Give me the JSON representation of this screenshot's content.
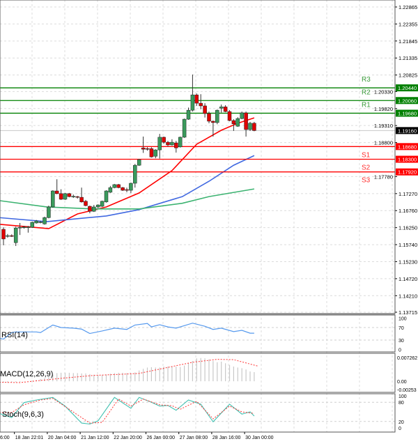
{
  "chart_data": {
    "type": "candlestick",
    "price_axis": {
      "range": [
        1.13715,
        1.22865
      ],
      "ticks": [
        "1.22865",
        "1.22355",
        "1.21845",
        "1.21335",
        "1.20825",
        "1.20330",
        "1.19820",
        "1.19310",
        "1.18800",
        "1.17780",
        "1.17270",
        "1.16760",
        "1.16250",
        "1.15740",
        "1.15230",
        "1.14720",
        "1.14210",
        "1.13715"
      ]
    },
    "time_axis": {
      "labels": [
        "6:00",
        "18 Jan 22:01",
        "20 Jan 04:00",
        "21 Jan 12:00",
        "22 Jan 20:00",
        "26 Jan 00:00",
        "27 Jan 08:00",
        "28 Jan 16:00",
        "30 Jan 00:00"
      ],
      "label_candle_index": [
        -1,
        3,
        11,
        19,
        27,
        35,
        43,
        51,
        59
      ]
    },
    "current_price": {
      "label": "1.19160",
      "value": 1.1916
    },
    "levels": [
      {
        "name": "R3",
        "label": "1.20440",
        "value": 1.2044,
        "color": "#008000"
      },
      {
        "name": "R2",
        "label": "1.20060",
        "value": 1.2006,
        "color": "#008000"
      },
      {
        "name": "R1",
        "label": "1.19680",
        "value": 1.1968,
        "color": "#008000"
      },
      {
        "name": "S1",
        "label": "1.18680",
        "value": 1.1868,
        "color": "#ff0000"
      },
      {
        "name": "S2",
        "label": "1.18300",
        "value": 1.183,
        "color": "#ff0000"
      },
      {
        "name": "S3",
        "label": "1.17920",
        "value": 1.1792,
        "color": "#ff0000"
      }
    ],
    "colors": {
      "up": "#3a9a5c",
      "down": "#e00000",
      "ma_fast": "#ff0000",
      "ma_mid": "#4169e1",
      "ma_slow": "#3cb371",
      "rsi": "#5599ee",
      "stoch_main": "#40c0b0",
      "signal": "#ff3333",
      "histogram": "#c8c8c8"
    },
    "candles_ohlc": [
      [
        1.162,
        1.1626,
        1.1572,
        1.1591
      ],
      [
        1.1599,
        1.1606,
        1.1595,
        1.1601
      ],
      [
        1.1601,
        1.1605,
        1.1597,
        1.1599
      ],
      [
        1.158,
        1.1628,
        1.157,
        1.1624
      ],
      [
        1.1624,
        1.1639,
        1.1603,
        1.1626
      ],
      [
        1.1626,
        1.163,
        1.1622,
        1.1627
      ],
      [
        1.1626,
        1.163,
        1.161,
        1.1627
      ],
      [
        1.1626,
        1.1643,
        1.1624,
        1.1641
      ],
      [
        1.1639,
        1.1648,
        1.1637,
        1.1645
      ],
      [
        1.1641,
        1.1645,
        1.1638,
        1.1642
      ],
      [
        1.1636,
        1.1658,
        1.1634,
        1.1655
      ],
      [
        1.1655,
        1.1691,
        1.1653,
        1.1687
      ],
      [
        1.1687,
        1.1737,
        1.1685,
        1.1735
      ],
      [
        1.1735,
        1.177,
        1.1725,
        1.1727
      ],
      [
        1.1727,
        1.174,
        1.1708,
        1.171
      ],
      [
        1.171,
        1.1729,
        1.1708,
        1.1727
      ],
      [
        1.1727,
        1.1729,
        1.1716,
        1.1718
      ],
      [
        1.1718,
        1.1724,
        1.1714,
        1.1719
      ],
      [
        1.1718,
        1.172,
        1.1712,
        1.1716
      ],
      [
        1.1716,
        1.1745,
        1.17,
        1.1702
      ],
      [
        1.1704,
        1.1708,
        1.1689,
        1.1691
      ],
      [
        1.1689,
        1.1691,
        1.1668,
        1.1674
      ],
      [
        1.1674,
        1.1693,
        1.1672,
        1.1687
      ],
      [
        1.1687,
        1.1695,
        1.1683,
        1.1693
      ],
      [
        1.1689,
        1.1706,
        1.1687,
        1.1704
      ],
      [
        1.1702,
        1.1737,
        1.17,
        1.1735
      ],
      [
        1.1731,
        1.175,
        1.1729,
        1.1745
      ],
      [
        1.1745,
        1.1756,
        1.1743,
        1.1754
      ],
      [
        1.1754,
        1.1756,
        1.1743,
        1.1745
      ],
      [
        1.1745,
        1.1747,
        1.1735,
        1.1737
      ],
      [
        1.1739,
        1.1745,
        1.1731,
        1.1737
      ],
      [
        1.1737,
        1.176,
        1.1729,
        1.1758
      ],
      [
        1.1758,
        1.1816,
        1.1745,
        1.1812
      ],
      [
        1.1812,
        1.1831,
        1.181,
        1.1829
      ],
      [
        1.1864,
        1.1898,
        1.1849,
        1.186
      ],
      [
        1.1862,
        1.1866,
        1.1856,
        1.1861
      ],
      [
        1.1862,
        1.1866,
        1.1835,
        1.1837
      ],
      [
        1.1839,
        1.186,
        1.1833,
        1.1858
      ],
      [
        1.1858,
        1.1906,
        1.1832,
        1.1896
      ],
      [
        1.1896,
        1.1898,
        1.1877,
        1.1881
      ],
      [
        1.1881,
        1.1885,
        1.1869,
        1.1873
      ],
      [
        1.1873,
        1.189,
        1.1871,
        1.1881
      ],
      [
        1.1879,
        1.1885,
        1.185,
        1.1864
      ],
      [
        1.1867,
        1.1898,
        1.1865,
        1.1896
      ],
      [
        1.1896,
        1.1952,
        1.1894,
        1.195
      ],
      [
        1.195,
        1.1985,
        1.1948,
        1.1977
      ],
      [
        1.1977,
        1.2084,
        1.1973,
        1.2023
      ],
      [
        1.2023,
        1.2027,
        1.199,
        1.1998
      ],
      [
        1.1998,
        1.2025,
        1.198,
        1.199
      ],
      [
        1.199,
        1.1998,
        1.1955,
        1.1967
      ],
      [
        1.1967,
        1.1973,
        1.1938,
        1.1944
      ],
      [
        1.1944,
        1.1946,
        1.1898,
        1.194
      ],
      [
        1.194,
        1.1979,
        1.1935,
        1.1977
      ],
      [
        1.1983,
        1.1994,
        1.197,
        1.1987
      ],
      [
        1.1987,
        1.1992,
        1.1971,
        1.1973
      ],
      [
        1.1973,
        1.1977,
        1.1944,
        1.1946
      ],
      [
        1.1946,
        1.195,
        1.1915,
        1.1936
      ],
      [
        1.1929,
        1.1956,
        1.1927,
        1.1952
      ],
      [
        1.1952,
        1.1973,
        1.195,
        1.1969
      ],
      [
        1.1969,
        1.1973,
        1.1898,
        1.1919
      ],
      [
        1.1919,
        1.1942,
        1.1915,
        1.1938
      ],
      [
        1.1938,
        1.1942,
        1.1914,
        1.1916
      ]
    ],
    "moving_averages": [
      {
        "color": "#ff0000",
        "points": [
          [
            -1,
            1.1635
          ],
          [
            11,
            1.1622
          ],
          [
            18,
            1.1666
          ],
          [
            25,
            1.1687
          ],
          [
            33,
            1.1729
          ],
          [
            41,
            1.1796
          ],
          [
            47,
            1.1875
          ],
          [
            53,
            1.1917
          ],
          [
            57,
            1.1938
          ],
          [
            61,
            1.1954
          ]
        ]
      },
      {
        "color": "#4169e1",
        "points": [
          [
            -1,
            1.1655
          ],
          [
            10.5,
            1.1643
          ],
          [
            25,
            1.166
          ],
          [
            33,
            1.1679
          ],
          [
            43.5,
            1.1718
          ],
          [
            50,
            1.1764
          ],
          [
            56,
            1.1812
          ],
          [
            61,
            1.1841
          ]
        ]
      },
      {
        "color": "#3cb371",
        "points": [
          [
            -1,
            1.1706
          ],
          [
            10.5,
            1.1687
          ],
          [
            22,
            1.1681
          ],
          [
            33,
            1.1681
          ],
          [
            43.5,
            1.1698
          ],
          [
            50,
            1.1718
          ],
          [
            61,
            1.1741
          ]
        ]
      }
    ],
    "rsi": {
      "label": "RSI(14)",
      "range": [
        0,
        100
      ],
      "ticks": [
        "100",
        "70",
        "30",
        "0"
      ],
      "tick_values": [
        100,
        70,
        30,
        0
      ],
      "points": [
        [
          -1,
          36
        ],
        [
          0,
          33
        ],
        [
          2,
          54
        ],
        [
          3,
          56
        ],
        [
          8,
          56
        ],
        [
          9,
          54
        ],
        [
          12,
          78
        ],
        [
          14,
          70
        ],
        [
          17,
          68
        ],
        [
          19,
          65
        ],
        [
          21,
          51
        ],
        [
          24,
          59
        ],
        [
          27,
          68
        ],
        [
          30,
          64
        ],
        [
          32,
          78
        ],
        [
          35,
          83
        ],
        [
          36,
          72
        ],
        [
          38,
          79
        ],
        [
          40,
          72
        ],
        [
          42,
          68
        ],
        [
          46,
          84
        ],
        [
          49,
          74
        ],
        [
          51,
          64
        ],
        [
          53,
          68
        ],
        [
          56,
          57
        ],
        [
          58,
          61
        ],
        [
          60,
          52
        ],
        [
          61,
          52
        ]
      ]
    },
    "macd": {
      "label": "MACD(12,26,9)",
      "range": [
        -0.00253,
        0.007262
      ],
      "ticks": [
        "0.007262",
        "0.00",
        "-0.00253"
      ],
      "tick_values": [
        0.007262,
        0,
        -0.00253
      ],
      "histogram": [
        -0.0004,
        -0.0004,
        -0.0003,
        -0.0003,
        -0.0002,
        -0.0001,
        0.0,
        0.0002,
        0.0004,
        0.0007,
        0.001,
        0.0014,
        0.002,
        0.0025,
        0.0026,
        0.0026,
        0.0026,
        0.0025,
        0.0025,
        0.0024,
        0.0024,
        0.0022,
        0.002,
        0.0019,
        0.0019,
        0.0021,
        0.0023,
        0.0025,
        0.0026,
        0.0026,
        0.0025,
        0.0025,
        0.0027,
        0.0033,
        0.0038,
        0.0042,
        0.0043,
        0.0042,
        0.0042,
        0.0045,
        0.0045,
        0.0045,
        0.0045,
        0.0044,
        0.0048,
        0.0056,
        0.0062,
        0.007,
        0.0071,
        0.007,
        0.0067,
        0.0062,
        0.0058,
        0.006,
        0.0055,
        0.005,
        0.0045,
        0.0042,
        0.004,
        0.0036,
        0.003,
        0.0028
      ],
      "signal": [
        [
          -1,
          -0.0003
        ],
        [
          4,
          -0.0004
        ],
        [
          14,
          0.0009
        ],
        [
          22,
          0.0018
        ],
        [
          28,
          0.0021
        ],
        [
          33,
          0.0024
        ],
        [
          41,
          0.0045
        ],
        [
          46,
          0.0058
        ],
        [
          52,
          0.0067
        ],
        [
          56,
          0.0066
        ],
        [
          62,
          0.0046
        ]
      ]
    },
    "stochastic": {
      "label": "Stoch(9,6,3)",
      "range": [
        0,
        100
      ],
      "ticks": [
        "100",
        "80",
        "20",
        "0"
      ],
      "tick_values": [
        100,
        80,
        20,
        0
      ],
      "main": [
        [
          -1,
          45
        ],
        [
          2,
          32
        ],
        [
          5,
          79
        ],
        [
          8,
          87
        ],
        [
          12,
          95
        ],
        [
          15,
          68
        ],
        [
          19,
          15
        ],
        [
          21,
          12
        ],
        [
          23,
          22
        ],
        [
          27,
          95
        ],
        [
          31,
          61
        ],
        [
          33,
          95
        ],
        [
          36,
          80
        ],
        [
          38,
          68
        ],
        [
          40,
          70
        ],
        [
          42,
          55
        ],
        [
          45,
          87
        ],
        [
          48,
          74
        ],
        [
          51,
          19
        ],
        [
          55,
          74
        ],
        [
          58,
          43
        ],
        [
          60,
          50
        ],
        [
          61,
          37
        ]
      ],
      "signal": [
        [
          -1,
          48
        ],
        [
          2,
          48
        ],
        [
          5,
          72
        ],
        [
          9,
          87
        ],
        [
          12,
          92
        ],
        [
          16,
          58
        ],
        [
          21,
          15
        ],
        [
          24,
          17
        ],
        [
          28,
          90
        ],
        [
          31,
          68
        ],
        [
          34,
          90
        ],
        [
          38,
          72
        ],
        [
          41,
          69
        ],
        [
          43,
          58
        ],
        [
          47,
          83
        ],
        [
          51,
          28
        ],
        [
          55,
          68
        ],
        [
          58,
          50
        ],
        [
          61,
          45
        ]
      ]
    }
  }
}
